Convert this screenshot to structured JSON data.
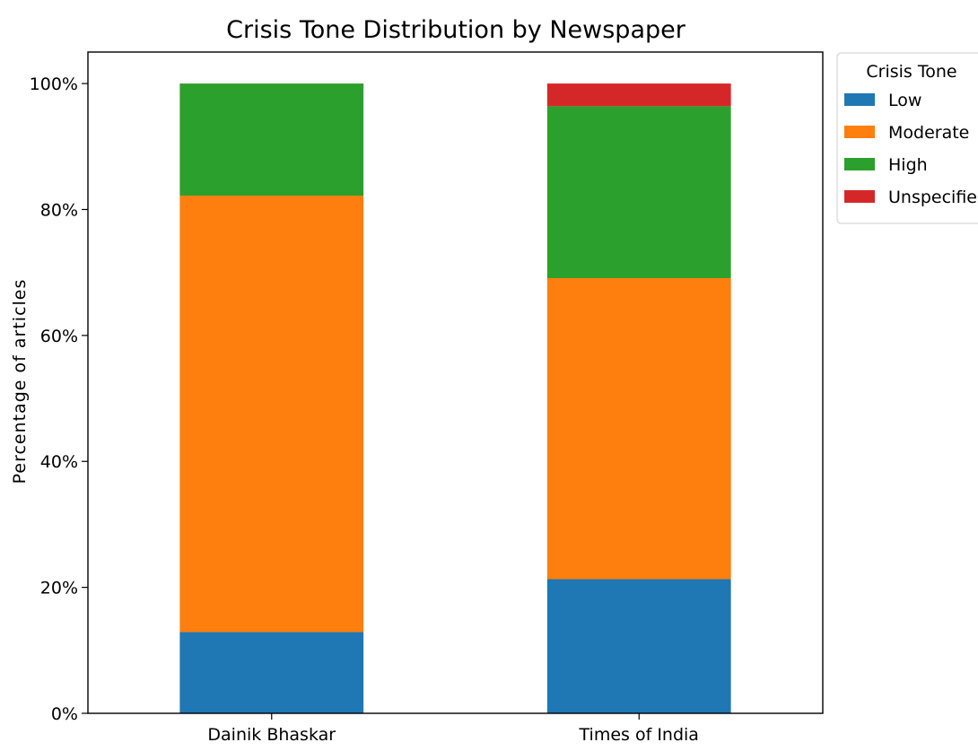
{
  "chart_data": {
    "type": "bar",
    "stacked": true,
    "title": "Crisis Tone Distribution by Newspaper",
    "xlabel": "",
    "ylabel": "Percentage of articles",
    "ylim": [
      0,
      105
    ],
    "yticks": [
      "0%",
      "20%",
      "40%",
      "60%",
      "80%",
      "100%"
    ],
    "ytick_values": [
      0,
      20,
      40,
      60,
      80,
      100
    ],
    "grid": false,
    "categories": [
      "Dainik Bhaskar",
      "Times of India"
    ],
    "legend": {
      "title": "Crisis Tone",
      "placement": "outside-top-right"
    },
    "series": [
      {
        "name": "Low",
        "color": "#1f77b4",
        "values": [
          12.9,
          21.3
        ]
      },
      {
        "name": "Moderate",
        "color": "#ff7f0e",
        "values": [
          69.3,
          47.8
        ]
      },
      {
        "name": "High",
        "color": "#2ca02c",
        "values": [
          17.8,
          27.3
        ]
      },
      {
        "name": "Unspecified",
        "color": "#d62728",
        "values": [
          0,
          3.6
        ]
      }
    ]
  }
}
